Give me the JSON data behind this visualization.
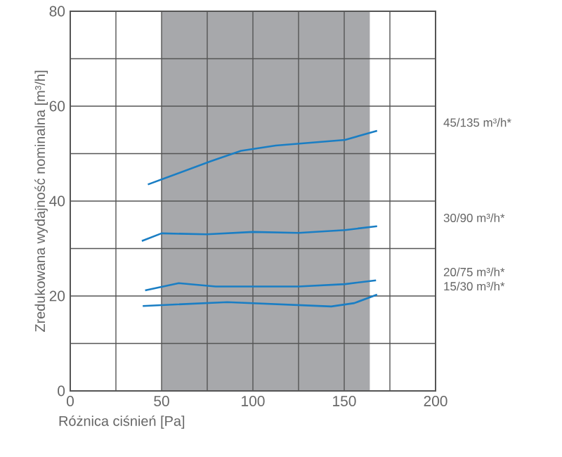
{
  "chart_data": {
    "type": "line",
    "xlabel": "Różnica ciśnień [Pa]",
    "ylabel": "Zredukowana wydajność nominalna [m³/h]",
    "xlim": [
      0,
      200
    ],
    "ylim": [
      0,
      80
    ],
    "xticks": [
      0,
      {
        "value": 25,
        "label": null
      },
      50,
      {
        "value": 75,
        "label": null
      },
      100,
      {
        "value": 125,
        "label": null
      },
      150,
      {
        "value": 175,
        "label": null
      },
      200
    ],
    "yticks": [
      0,
      {
        "value": 10,
        "label": null
      },
      20,
      {
        "value": 30,
        "label": null
      },
      40,
      {
        "value": 50,
        "label": null
      },
      60,
      {
        "value": 70,
        "label": null
      },
      80
    ],
    "grid": true,
    "legend": false,
    "line_style": "solid",
    "marker": "none",
    "bands": [
      {
        "axis": "x",
        "from": 50,
        "to": 164,
        "color": "#a7a8ab"
      }
    ],
    "series": [
      {
        "name": "45/135 m³/h*",
        "color": "#1a7ec4",
        "x": [
          42.5,
          77,
          93.5,
          112.5,
          150.4,
          168
        ],
        "values": [
          43.5,
          48.4,
          50.6,
          51.7,
          52.9,
          54.8
        ]
      },
      {
        "name": "30/90 m³/h*",
        "color": "#1a7ec4",
        "x": [
          39.2,
          50,
          74.6,
          100,
          125,
          150.4,
          168
        ],
        "values": [
          31.6,
          33.2,
          33.0,
          33.5,
          33.3,
          33.9,
          34.7
        ]
      },
      {
        "name": "20/75 m³/h*",
        "color": "#1a7ec4",
        "x": [
          41,
          59.4,
          79.6,
          125,
          150.4,
          167.4
        ],
        "values": [
          21.2,
          22.7,
          22.0,
          22.0,
          22.5,
          23.3
        ]
      },
      {
        "name": "15/30 m³/h*",
        "color": "#1a7ec4",
        "x": [
          39.7,
          86,
          142.9,
          155.5,
          168
        ],
        "values": [
          17.9,
          18.7,
          17.8,
          18.5,
          20.3
        ]
      }
    ]
  }
}
